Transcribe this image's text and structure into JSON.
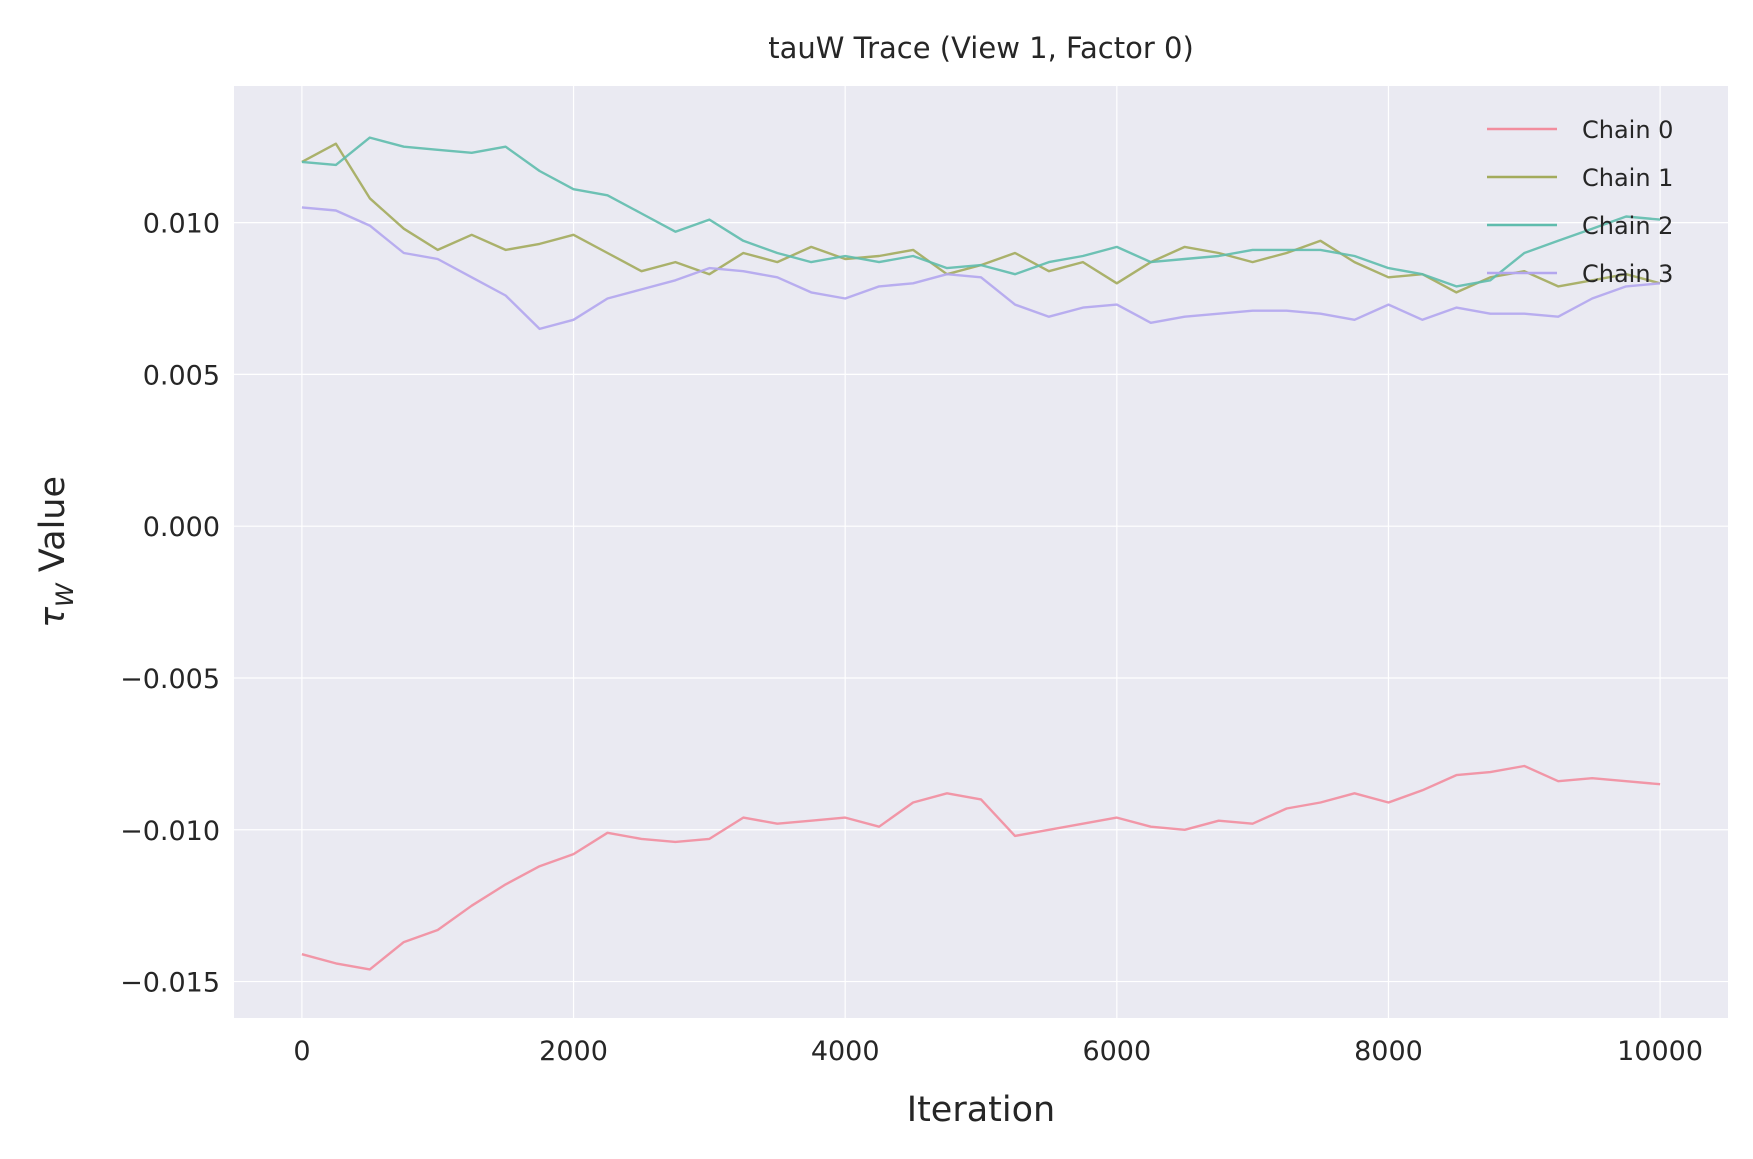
{
  "chart_data": {
    "type": "line",
    "title": "tauW Trace (View 1, Factor 0)",
    "xlabel": "Iteration",
    "ylabel": "τ_W Value",
    "xlim": [
      -500,
      10500
    ],
    "ylim": [
      -0.0162,
      0.0145
    ],
    "x_ticks": [
      0,
      2000,
      4000,
      6000,
      8000,
      10000
    ],
    "x_tick_labels": [
      "0",
      "2000",
      "4000",
      "6000",
      "8000",
      "10000"
    ],
    "y_ticks": [
      -0.015,
      -0.01,
      -0.005,
      0.0,
      0.005,
      0.01
    ],
    "y_tick_labels": [
      "−0.015",
      "−0.010",
      "−0.005",
      "0.000",
      "0.005",
      "0.010"
    ],
    "grid": true,
    "legend_position": "top-right",
    "x": [
      0,
      250,
      500,
      750,
      1000,
      1250,
      1500,
      1750,
      2000,
      2250,
      2500,
      2750,
      3000,
      3250,
      3500,
      3750,
      4000,
      4250,
      4500,
      4750,
      5000,
      5250,
      5500,
      5750,
      6000,
      6250,
      6500,
      6750,
      7000,
      7250,
      7500,
      7750,
      8000,
      8250,
      8500,
      8750,
      9000,
      9250,
      9500,
      9750,
      10000
    ],
    "series": [
      {
        "name": "Chain 0",
        "color": "#f28d9e",
        "values": [
          -0.0141,
          -0.0144,
          -0.0146,
          -0.0137,
          -0.0133,
          -0.0125,
          -0.0118,
          -0.0112,
          -0.0108,
          -0.0101,
          -0.0103,
          -0.0104,
          -0.0103,
          -0.0096,
          -0.0098,
          -0.0097,
          -0.0096,
          -0.0099,
          -0.0091,
          -0.0088,
          -0.009,
          -0.0102,
          -0.01,
          -0.0098,
          -0.0096,
          -0.0099,
          -0.01,
          -0.0097,
          -0.0098,
          -0.0093,
          -0.0091,
          -0.0088,
          -0.0091,
          -0.0087,
          -0.0082,
          -0.0081,
          -0.0079,
          -0.0084,
          -0.0083,
          -0.0084,
          -0.0085
        ]
      },
      {
        "name": "Chain 1",
        "color": "#a3ab5c",
        "values": [
          0.012,
          0.0126,
          0.0108,
          0.0098,
          0.0091,
          0.0096,
          0.0091,
          0.0093,
          0.0096,
          0.009,
          0.0084,
          0.0087,
          0.0083,
          0.009,
          0.0087,
          0.0092,
          0.0088,
          0.0089,
          0.0091,
          0.0083,
          0.0086,
          0.009,
          0.0084,
          0.0087,
          0.008,
          0.0087,
          0.0092,
          0.009,
          0.0087,
          0.009,
          0.0094,
          0.0087,
          0.0082,
          0.0083,
          0.0077,
          0.0082,
          0.0084,
          0.0079,
          0.0081,
          0.0083,
          0.008
        ]
      },
      {
        "name": "Chain 2",
        "color": "#5fbcad",
        "values": [
          0.012,
          0.0119,
          0.0128,
          0.0125,
          0.0124,
          0.0123,
          0.0125,
          0.0117,
          0.0111,
          0.0109,
          0.0103,
          0.0097,
          0.0101,
          0.0094,
          0.009,
          0.0087,
          0.0089,
          0.0087,
          0.0089,
          0.0085,
          0.0086,
          0.0083,
          0.0087,
          0.0089,
          0.0092,
          0.0087,
          0.0088,
          0.0089,
          0.0091,
          0.0091,
          0.0091,
          0.0089,
          0.0085,
          0.0083,
          0.0079,
          0.0081,
          0.009,
          0.0094,
          0.0098,
          0.0102,
          0.0101
        ]
      },
      {
        "name": "Chain 3",
        "color": "#b3a6ee",
        "values": [
          0.0105,
          0.0104,
          0.0099,
          0.009,
          0.0088,
          0.0082,
          0.0076,
          0.0065,
          0.0068,
          0.0075,
          0.0078,
          0.0081,
          0.0085,
          0.0084,
          0.0082,
          0.0077,
          0.0075,
          0.0079,
          0.008,
          0.0083,
          0.0082,
          0.0073,
          0.0069,
          0.0072,
          0.0073,
          0.0067,
          0.0069,
          0.007,
          0.0071,
          0.0071,
          0.007,
          0.0068,
          0.0073,
          0.0068,
          0.0072,
          0.007,
          0.007,
          0.0069,
          0.0075,
          0.0079,
          0.008
        ]
      }
    ]
  }
}
